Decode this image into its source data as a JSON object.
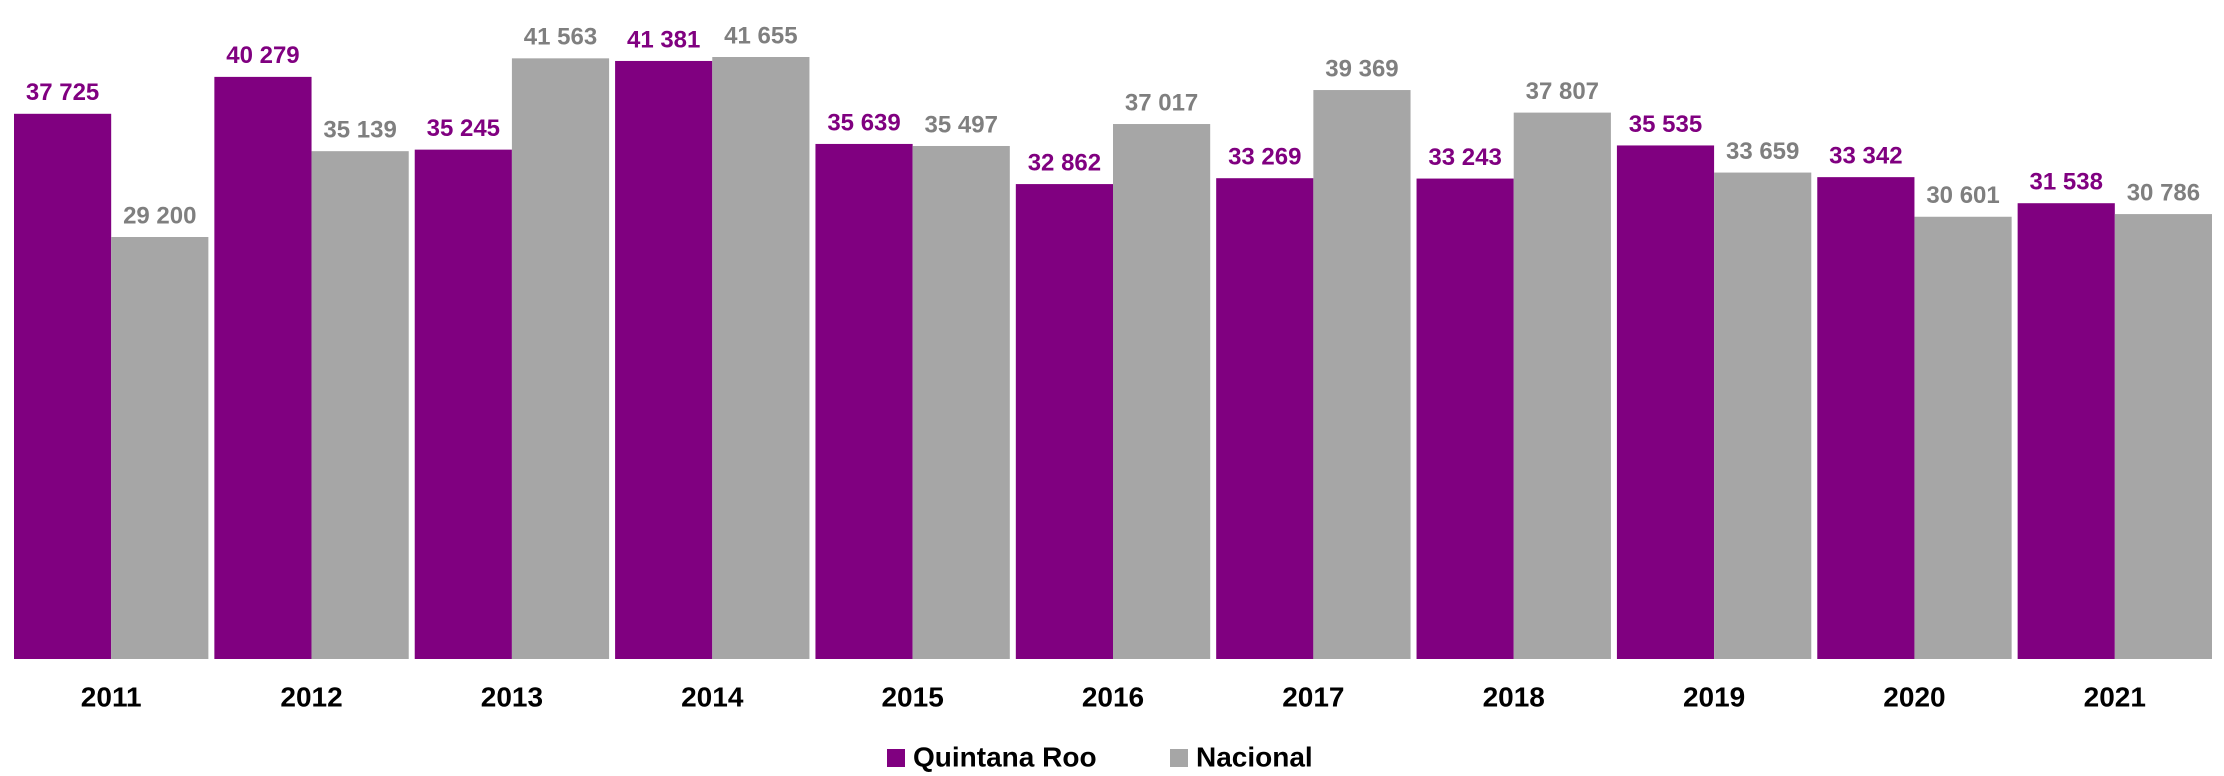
{
  "chart_data": {
    "type": "bar",
    "categories": [
      "2011",
      "2012",
      "2013",
      "2014",
      "2015",
      "2016",
      "2017",
      "2018",
      "2019",
      "2020",
      "2021"
    ],
    "series": [
      {
        "name": "Quintana Roo",
        "color": "#800080",
        "values": [
          37725,
          40279,
          35245,
          41381,
          35639,
          32862,
          33269,
          33243,
          35535,
          33342,
          31538
        ],
        "value_labels": [
          "37 725",
          "40 279",
          "35 245",
          "41 381",
          "35 639",
          "32 862",
          "33 269",
          "33 243",
          "35 535",
          "33 342",
          "31 538"
        ]
      },
      {
        "name": "Nacional",
        "color": "#a6a6a6",
        "values": [
          29200,
          35139,
          41563,
          41655,
          35497,
          37017,
          39369,
          37807,
          33659,
          30601,
          30786
        ],
        "value_labels": [
          "29 200",
          "35 139",
          "41 563",
          "41 655",
          "35 497",
          "37 017",
          "39 369",
          "37 807",
          "33 659",
          "30 601",
          "30 786"
        ]
      }
    ],
    "legend": "bottom"
  }
}
